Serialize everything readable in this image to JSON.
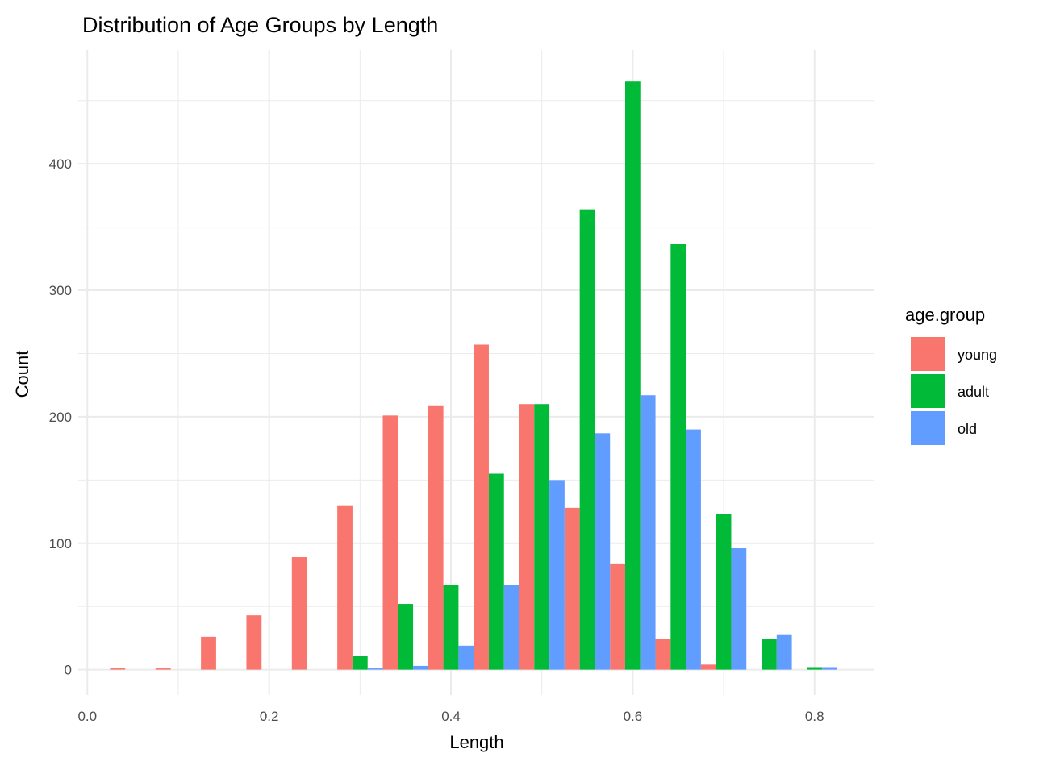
{
  "chart_data": {
    "type": "bar",
    "title": "Distribution of Age Groups by Length",
    "xlabel": "Length",
    "ylabel": "Count",
    "xlim": [
      -0.01,
      0.865
    ],
    "ylim": [
      -20,
      490
    ],
    "x_ticks": [
      0.0,
      0.2,
      0.4,
      0.6,
      0.8
    ],
    "x_tick_labels": [
      "0.0",
      "0.2",
      "0.4",
      "0.6",
      "0.8"
    ],
    "y_ticks": [
      0,
      100,
      200,
      300,
      400
    ],
    "y_tick_labels": [
      "0",
      "100",
      "200",
      "300",
      "400"
    ],
    "grid": true,
    "legend": {
      "title": "age.group",
      "position": "right"
    },
    "bin_width": 0.05,
    "x": [
      0.05,
      0.1,
      0.15,
      0.2,
      0.25,
      0.3,
      0.35,
      0.4,
      0.45,
      0.5,
      0.55,
      0.6,
      0.65,
      0.7,
      0.75,
      0.8
    ],
    "series": [
      {
        "name": "young",
        "color": "#F8766D",
        "values": [
          1,
          1,
          26,
          43,
          89,
          130,
          201,
          209,
          257,
          210,
          128,
          84,
          24,
          4,
          0,
          0
        ]
      },
      {
        "name": "adult",
        "color": "#00BA38",
        "values": [
          0,
          0,
          0,
          0,
          0,
          11,
          52,
          67,
          155,
          210,
          364,
          465,
          337,
          123,
          24,
          2
        ]
      },
      {
        "name": "old",
        "color": "#619CFF",
        "values": [
          0,
          0,
          0,
          0,
          0,
          1,
          3,
          19,
          67,
          150,
          187,
          217,
          190,
          96,
          28,
          2
        ]
      }
    ]
  }
}
